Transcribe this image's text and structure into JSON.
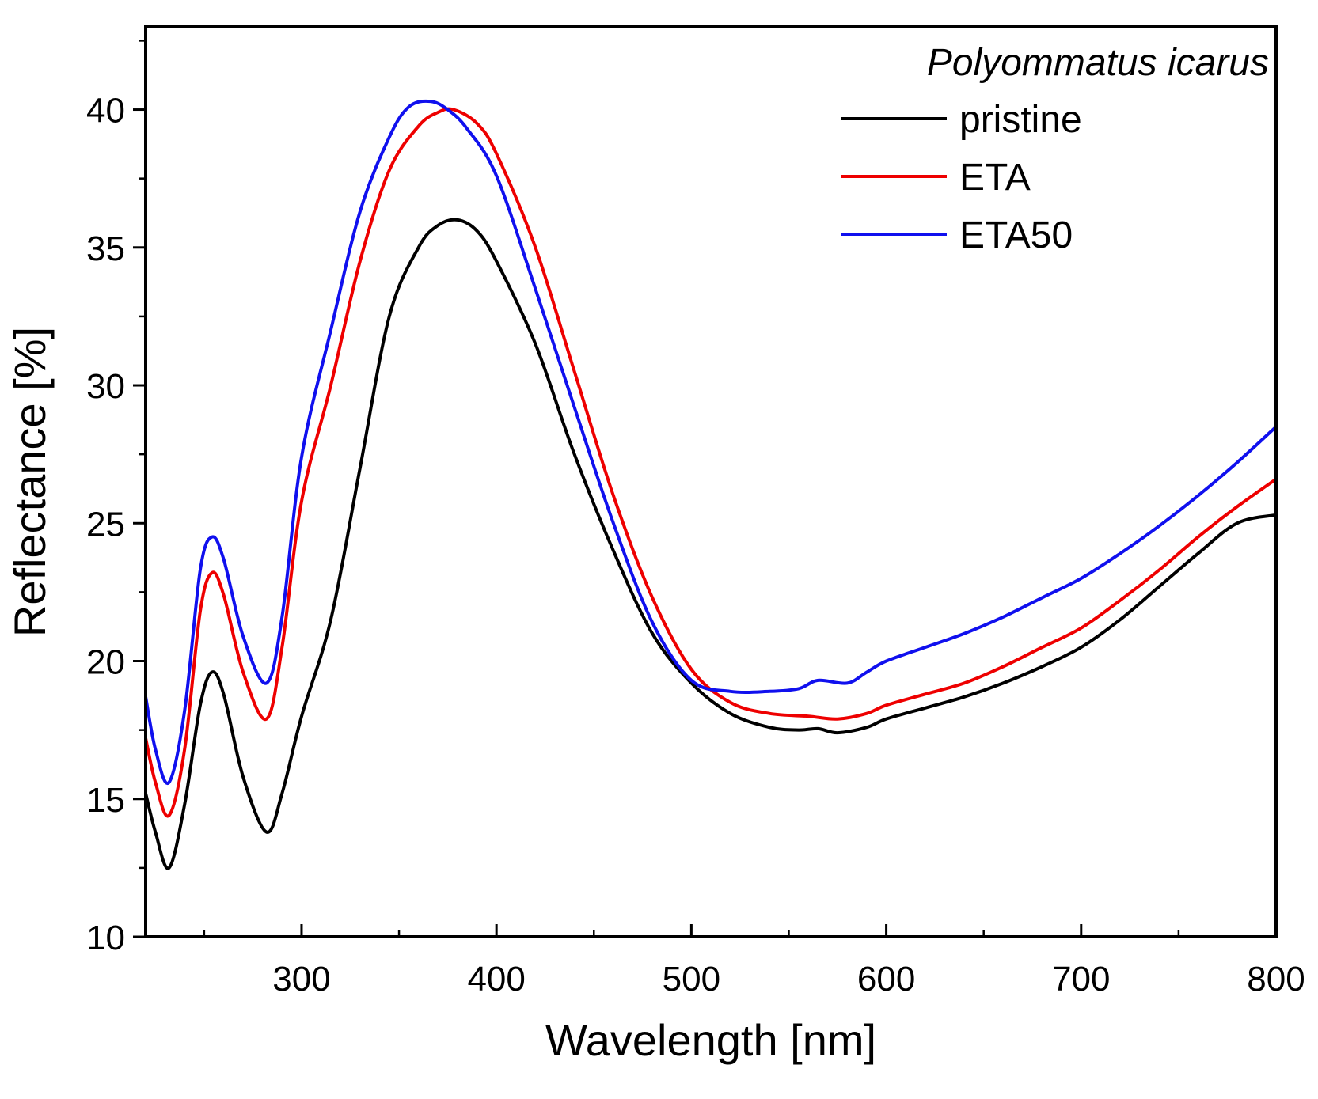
{
  "chart_data": {
    "type": "line",
    "title": "",
    "xlabel": "Wavelength [nm]",
    "ylabel": "Reflectance [%]",
    "xlim": [
      220,
      800
    ],
    "ylim": [
      10,
      43
    ],
    "x_major_ticks": [
      300,
      400,
      500,
      600,
      700,
      800
    ],
    "x_minor_ticks": [
      250,
      350,
      450,
      550,
      650,
      750
    ],
    "y_major_ticks": [
      10,
      15,
      20,
      25,
      30,
      35,
      40
    ],
    "y_minor_ticks": [
      12.5,
      17.5,
      22.5,
      27.5,
      32.5,
      37.5,
      42.5
    ],
    "x_tick_labels": [
      "300",
      "400",
      "500",
      "600",
      "700",
      "800"
    ],
    "y_tick_labels": [
      "10",
      "15",
      "20",
      "25",
      "30",
      "35",
      "40"
    ],
    "grid": false,
    "legend": {
      "title": "Polyommatus icarus",
      "placement": "top-right",
      "entries": [
        "pristine",
        "ETA",
        "ETA50"
      ]
    },
    "series": [
      {
        "name": "pristine",
        "color": "#000000",
        "points": [
          [
            220,
            15.2
          ],
          [
            225,
            13.8
          ],
          [
            232,
            12.5
          ],
          [
            240,
            14.8
          ],
          [
            248,
            18.4
          ],
          [
            254,
            19.6
          ],
          [
            260,
            18.8
          ],
          [
            270,
            15.8
          ],
          [
            282,
            13.8
          ],
          [
            290,
            15.2
          ],
          [
            300,
            18.0
          ],
          [
            315,
            21.5
          ],
          [
            330,
            27.0
          ],
          [
            345,
            32.5
          ],
          [
            360,
            35.0
          ],
          [
            370,
            35.8
          ],
          [
            380,
            36.0
          ],
          [
            390,
            35.6
          ],
          [
            400,
            34.5
          ],
          [
            420,
            31.5
          ],
          [
            440,
            27.5
          ],
          [
            460,
            24.0
          ],
          [
            480,
            21.0
          ],
          [
            500,
            19.2
          ],
          [
            520,
            18.1
          ],
          [
            540,
            17.6
          ],
          [
            555,
            17.5
          ],
          [
            565,
            17.55
          ],
          [
            575,
            17.4
          ],
          [
            590,
            17.6
          ],
          [
            600,
            17.9
          ],
          [
            620,
            18.3
          ],
          [
            640,
            18.7
          ],
          [
            660,
            19.2
          ],
          [
            680,
            19.8
          ],
          [
            700,
            20.5
          ],
          [
            720,
            21.5
          ],
          [
            740,
            22.7
          ],
          [
            760,
            23.9
          ],
          [
            780,
            25.0
          ],
          [
            800,
            25.3
          ]
        ]
      },
      {
        "name": "ETA",
        "color": "#ee0000",
        "points": [
          [
            220,
            17.2
          ],
          [
            225,
            15.6
          ],
          [
            232,
            14.4
          ],
          [
            240,
            16.8
          ],
          [
            248,
            21.8
          ],
          [
            254,
            23.2
          ],
          [
            260,
            22.4
          ],
          [
            270,
            19.6
          ],
          [
            282,
            17.9
          ],
          [
            290,
            20.5
          ],
          [
            300,
            25.8
          ],
          [
            315,
            30.0
          ],
          [
            330,
            34.5
          ],
          [
            345,
            37.8
          ],
          [
            360,
            39.4
          ],
          [
            370,
            39.9
          ],
          [
            378,
            40.0
          ],
          [
            390,
            39.5
          ],
          [
            400,
            38.4
          ],
          [
            420,
            35.0
          ],
          [
            440,
            30.5
          ],
          [
            460,
            26.0
          ],
          [
            480,
            22.3
          ],
          [
            500,
            19.7
          ],
          [
            520,
            18.5
          ],
          [
            540,
            18.1
          ],
          [
            560,
            18.0
          ],
          [
            575,
            17.9
          ],
          [
            590,
            18.1
          ],
          [
            600,
            18.4
          ],
          [
            620,
            18.8
          ],
          [
            640,
            19.2
          ],
          [
            660,
            19.8
          ],
          [
            680,
            20.5
          ],
          [
            700,
            21.2
          ],
          [
            720,
            22.2
          ],
          [
            740,
            23.3
          ],
          [
            760,
            24.5
          ],
          [
            780,
            25.6
          ],
          [
            800,
            26.6
          ]
        ]
      },
      {
        "name": "ETA50",
        "color": "#1010ee",
        "points": [
          [
            220,
            18.7
          ],
          [
            225,
            16.8
          ],
          [
            232,
            15.6
          ],
          [
            240,
            18.2
          ],
          [
            248,
            23.3
          ],
          [
            254,
            24.5
          ],
          [
            260,
            23.7
          ],
          [
            270,
            20.9
          ],
          [
            282,
            19.2
          ],
          [
            290,
            21.6
          ],
          [
            300,
            27.4
          ],
          [
            315,
            32.0
          ],
          [
            330,
            36.3
          ],
          [
            345,
            39.0
          ],
          [
            355,
            40.1
          ],
          [
            366,
            40.3
          ],
          [
            375,
            40.0
          ],
          [
            385,
            39.3
          ],
          [
            400,
            37.6
          ],
          [
            420,
            33.5
          ],
          [
            440,
            29.2
          ],
          [
            460,
            25.0
          ],
          [
            480,
            21.4
          ],
          [
            500,
            19.3
          ],
          [
            520,
            18.9
          ],
          [
            540,
            18.9
          ],
          [
            555,
            19.0
          ],
          [
            565,
            19.3
          ],
          [
            580,
            19.2
          ],
          [
            590,
            19.6
          ],
          [
            600,
            20.0
          ],
          [
            620,
            20.5
          ],
          [
            640,
            21.0
          ],
          [
            660,
            21.6
          ],
          [
            680,
            22.3
          ],
          [
            700,
            23.0
          ],
          [
            720,
            23.9
          ],
          [
            740,
            24.9
          ],
          [
            760,
            26.0
          ],
          [
            780,
            27.2
          ],
          [
            800,
            28.5
          ]
        ]
      }
    ]
  }
}
